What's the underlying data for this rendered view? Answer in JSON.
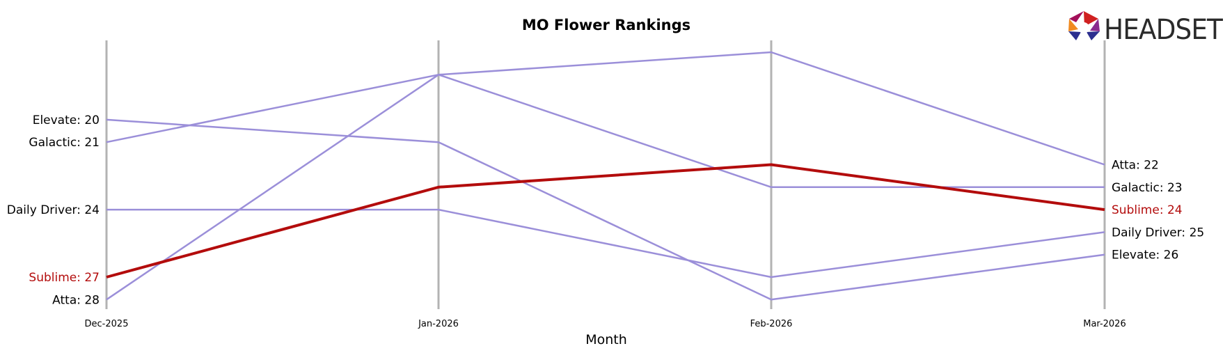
{
  "chart_data": {
    "type": "line",
    "title": "MO Flower Rankings",
    "xlabel": "Month",
    "ylabel": "",
    "categories": [
      "Dec-2025",
      "Jan-2026",
      "Feb-2026",
      "Mar-2026"
    ],
    "ylim": [
      30,
      17
    ],
    "y_inverted": true,
    "grid": "vertical",
    "highlight_series": "Sublime",
    "series": [
      {
        "name": "Atta",
        "values": [
          28,
          18,
          17,
          22
        ],
        "color": "#9b8fd9"
      },
      {
        "name": "Elevate",
        "values": [
          20,
          21,
          28,
          26
        ],
        "color": "#9b8fd9"
      },
      {
        "name": "Galactic",
        "values": [
          21,
          18,
          23,
          23
        ],
        "color": "#9b8fd9"
      },
      {
        "name": "Daily Driver",
        "values": [
          24,
          24,
          27,
          25
        ],
        "color": "#9b8fd9"
      },
      {
        "name": "Sublime",
        "values": [
          27,
          23,
          22,
          24
        ],
        "color": "#b30c0c"
      }
    ]
  },
  "colors": {
    "default_series": "#9b8fd9",
    "highlight": "#b30c0c",
    "vertical_grid": "#b3b3b3",
    "label_default": "#000000"
  },
  "logo": {
    "text": "HEADSET",
    "icon": "headset-hexagon-logo"
  }
}
